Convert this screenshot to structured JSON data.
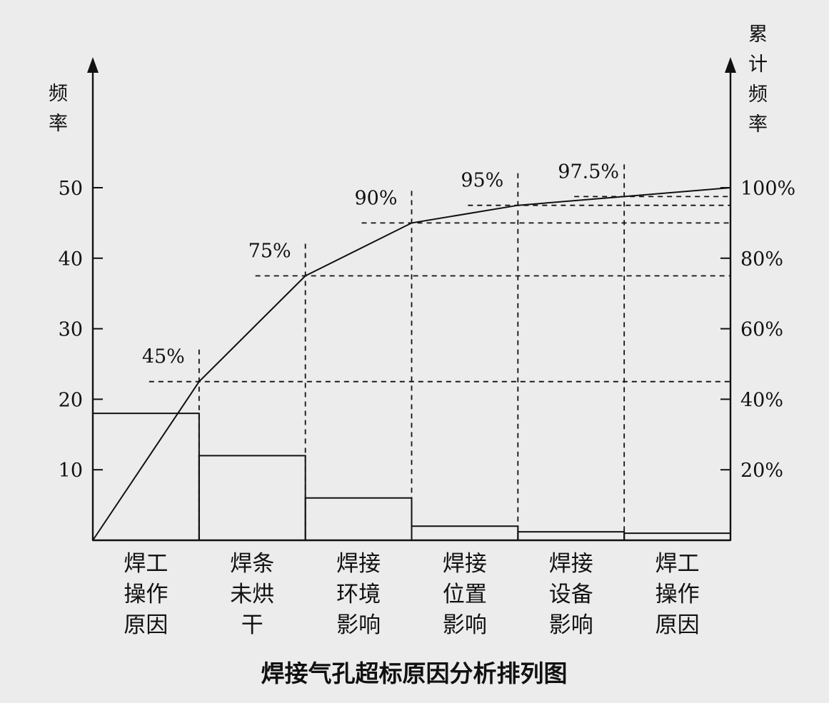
{
  "chart_data": {
    "type": "bar",
    "title": "焊接气孔超标原因分析排列图",
    "ylabel_left": "频率",
    "ylabel_right": "累计频率",
    "ylim_left": [
      0,
      50
    ],
    "ylim_right": [
      0,
      100
    ],
    "yticks_left": [
      "10",
      "20",
      "30",
      "40",
      "50"
    ],
    "yticks_right": [
      "20%",
      "40%",
      "60%",
      "80%",
      "100%"
    ],
    "categories": [
      [
        "焊工",
        "操作",
        "原因"
      ],
      [
        "焊条",
        "未烘",
        "干"
      ],
      [
        "焊接",
        "环境",
        "影响"
      ],
      [
        "焊接",
        "位置",
        "影响"
      ],
      [
        "焊接",
        "设备",
        "影响"
      ],
      [
        "焊工",
        "操作",
        "原因"
      ]
    ],
    "values": [
      18,
      12,
      6,
      2,
      1.2,
      1
    ],
    "cumulative": [
      45,
      75,
      90,
      95,
      97.5,
      100
    ],
    "cumulative_labels": [
      "45%",
      "75%",
      "90%",
      "95%",
      "97.5%"
    ]
  }
}
